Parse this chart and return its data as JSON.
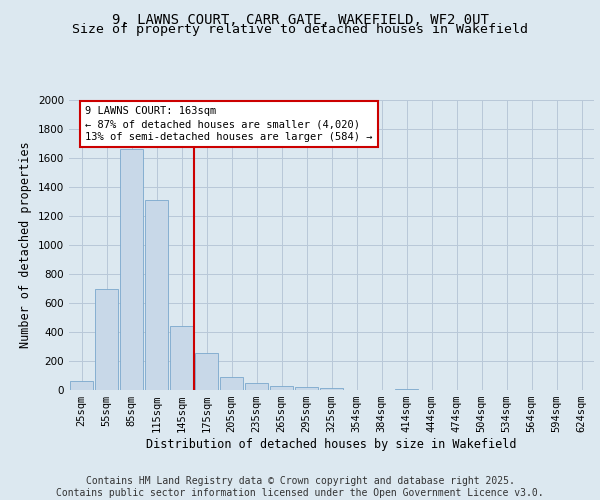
{
  "title_line1": "9, LAWNS COURT, CARR GATE, WAKEFIELD, WF2 0UT",
  "title_line2": "Size of property relative to detached houses in Wakefield",
  "xlabel": "Distribution of detached houses by size in Wakefield",
  "ylabel": "Number of detached properties",
  "categories": [
    "25sqm",
    "55sqm",
    "85sqm",
    "115sqm",
    "145sqm",
    "175sqm",
    "205sqm",
    "235sqm",
    "265sqm",
    "295sqm",
    "325sqm",
    "354sqm",
    "384sqm",
    "414sqm",
    "444sqm",
    "474sqm",
    "504sqm",
    "534sqm",
    "564sqm",
    "594sqm",
    "624sqm"
  ],
  "values": [
    60,
    700,
    1660,
    1310,
    440,
    255,
    90,
    50,
    30,
    20,
    15,
    0,
    0,
    10,
    0,
    0,
    0,
    0,
    0,
    0,
    0
  ],
  "bar_color": "#c8d8e8",
  "bar_edge_color": "#7aa8cc",
  "vline_color": "#cc0000",
  "annotation_text": "9 LAWNS COURT: 163sqm\n← 87% of detached houses are smaller (4,020)\n13% of semi-detached houses are larger (584) →",
  "annotation_box_color": "#cc0000",
  "ylim": [
    0,
    2000
  ],
  "yticks": [
    0,
    200,
    400,
    600,
    800,
    1000,
    1200,
    1400,
    1600,
    1800,
    2000
  ],
  "fig_bg_color": "#dce8f0",
  "plot_bg_color": "#dce8f0",
  "footer_line1": "Contains HM Land Registry data © Crown copyright and database right 2025.",
  "footer_line2": "Contains public sector information licensed under the Open Government Licence v3.0.",
  "title_fontsize": 10,
  "subtitle_fontsize": 9.5,
  "axis_label_fontsize": 8.5,
  "tick_fontsize": 7.5,
  "footer_fontsize": 7,
  "annotation_fontsize": 7.5
}
